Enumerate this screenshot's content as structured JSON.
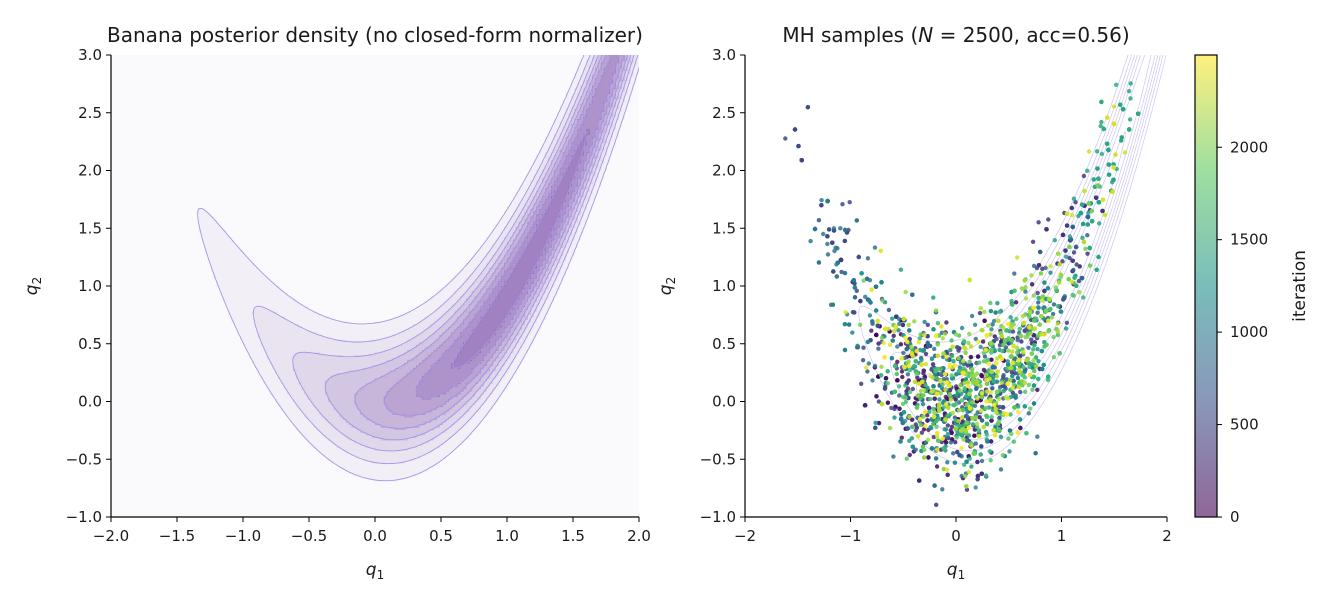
{
  "chart_data": [
    {
      "type": "contour",
      "title": "Banana posterior density (no closed-form normalizer)",
      "xlabel": {
        "base": "q",
        "sub": "1"
      },
      "ylabel": {
        "base": "q",
        "sub": "2"
      },
      "xlim": [
        -2,
        2
      ],
      "ylim": [
        -1,
        3
      ],
      "xticks": [
        -2.0,
        -1.5,
        -1.0,
        -0.5,
        0.0,
        0.5,
        1.0,
        1.5,
        2.0
      ],
      "yticks": [
        -1.0,
        -0.5,
        0.0,
        0.5,
        1.0,
        1.5,
        2.0,
        2.5,
        3.0
      ],
      "xtick_labels": [
        "−2.0",
        "−1.5",
        "−1.0",
        "−0.5",
        "0.0",
        "0.5",
        "1.0",
        "1.5",
        "2.0"
      ],
      "ytick_labels": [
        "−1.0",
        "−0.5",
        "0.0",
        "0.5",
        "1.0",
        "1.5",
        "2.0",
        "2.5",
        "3.0"
      ],
      "density": {
        "form": "banana",
        "curve_b": 0.9,
        "sigma_q1": 0.9,
        "sigma_perp": 0.28,
        "center_q1": 1.1
      },
      "contour_levels": [
        0.025,
        0.08,
        0.16,
        0.26,
        0.38,
        0.52,
        0.68,
        0.85
      ],
      "fill_color": "#7b4fa8",
      "line_color": "#a395e8",
      "grid": false
    },
    {
      "type": "scatter",
      "title_parts": {
        "pre": "MH samples (",
        "var": "N",
        "post": " = 2500, acc=0.56)"
      },
      "xlabel": {
        "base": "q",
        "sub": "1"
      },
      "ylabel": {
        "base": "q",
        "sub": "2"
      },
      "xlim": [
        -2,
        2
      ],
      "ylim": [
        -1,
        3
      ],
      "xticks": [
        -2,
        -1,
        0,
        1,
        2
      ],
      "yticks": [
        -1.0,
        -0.5,
        0.0,
        0.5,
        1.0,
        1.5,
        2.0,
        2.5,
        3.0
      ],
      "xtick_labels": [
        "−2",
        "−1",
        "0",
        "1",
        "2"
      ],
      "ytick_labels": [
        "−1.0",
        "−0.5",
        "0.0",
        "0.5",
        "1.0",
        "1.5",
        "2.0",
        "2.5",
        "3.0"
      ],
      "n_samples": 2500,
      "acceptance_rate": 0.56,
      "point_color": "iteration",
      "colormap": "viridis",
      "colorbar": {
        "label": "iteration",
        "range": [
          0,
          2499
        ],
        "ticks": [
          0,
          500,
          1000,
          1500,
          2000
        ],
        "tick_labels": [
          "0",
          "500",
          "1000",
          "1500",
          "2000"
        ]
      },
      "overlay_contours": true,
      "grid": false
    }
  ]
}
